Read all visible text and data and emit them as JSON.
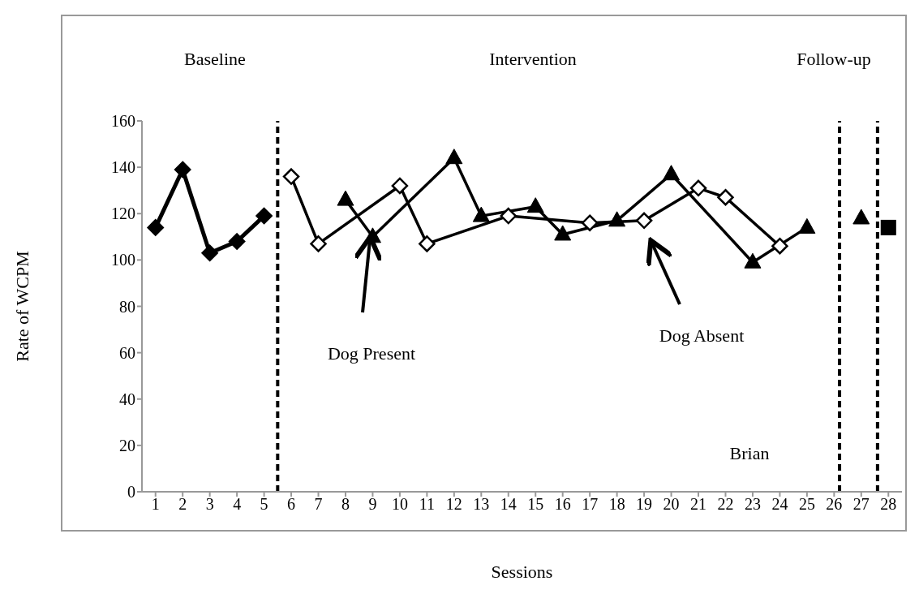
{
  "chart_data": {
    "type": "line",
    "xlabel": "Sessions",
    "ylabel": "Rate of WCPM",
    "xlim": [
      0.5,
      28.5
    ],
    "xticks": [
      1,
      2,
      3,
      4,
      5,
      6,
      7,
      8,
      9,
      10,
      11,
      12,
      13,
      14,
      15,
      16,
      17,
      18,
      19,
      20,
      21,
      22,
      23,
      24,
      25,
      26,
      27,
      28
    ],
    "ylim": [
      0,
      160
    ],
    "yticks": [
      0,
      20,
      40,
      60,
      80,
      100,
      120,
      140,
      160
    ],
    "series": [
      {
        "color": "#000000",
        "marker": "diamond",
        "x": [
          1,
          2,
          3,
          4,
          5
        ],
        "values": [
          114,
          139,
          103,
          108,
          119
        ]
      },
      {
        "color": "#000000",
        "marker": "diamond",
        "x": [
          6,
          7,
          10,
          11,
          14,
          17,
          19,
          21,
          22,
          24
        ],
        "values": [
          136,
          107,
          132,
          107,
          119,
          116,
          117,
          131,
          127,
          106
        ]
      },
      {
        "color": "#000000",
        "marker": "triangle",
        "x": [
          8,
          9,
          12,
          13,
          15,
          16,
          18,
          20,
          23,
          25
        ],
        "values": [
          126,
          110,
          144,
          119,
          123,
          111,
          117,
          137,
          99,
          114
        ]
      },
      {
        "type": "scatter",
        "color": "#000000",
        "marker": "triangle",
        "x": [
          27
        ],
        "values": [
          118
        ]
      },
      {
        "type": "scatter",
        "color": "#000000",
        "marker": "square",
        "x": [
          28
        ],
        "values": [
          114
        ]
      }
    ],
    "ref_lines": [
      {
        "axis": "x",
        "value": 5.5,
        "color": "#000000",
        "line_style": "dashed"
      },
      {
        "axis": "x",
        "value": 26.2,
        "color": "#000000",
        "line_style": "dashed"
      },
      {
        "axis": "x",
        "value": 27.6,
        "color": "#000000",
        "line_style": "dashed"
      }
    ],
    "annotations": [
      "Baseline",
      "Intervention",
      "Follow-up",
      "Brian",
      "Dog Present",
      "Dog Absent"
    ]
  }
}
